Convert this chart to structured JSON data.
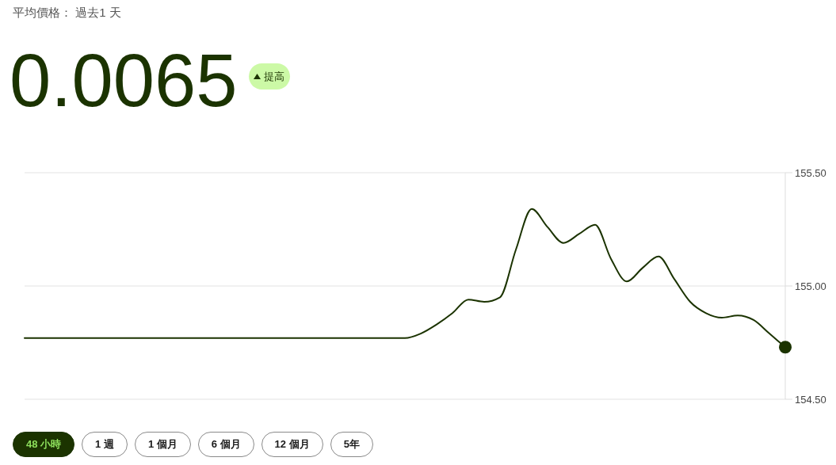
{
  "chart_data": {
    "type": "line",
    "title": "平均價格： 過去1 天",
    "subtitle": "0.0065",
    "annotations": [
      "提高",
      "48 小時",
      "1 週",
      "1 個月",
      "6 個月",
      "12 個月",
      "5年"
    ],
    "categories": [
      null,
      null,
      null,
      null,
      null,
      null,
      null,
      null,
      null,
      null,
      null,
      null,
      null,
      null,
      null,
      null,
      null,
      null,
      null,
      null,
      null,
      null,
      null,
      null,
      null,
      null,
      null,
      null,
      null,
      null,
      null,
      null,
      null,
      null,
      null,
      null,
      null,
      null,
      null,
      null,
      null,
      null,
      null,
      null,
      null,
      null,
      null,
      null,
      null
    ],
    "series": [
      {
        "color": "#1b3300",
        "values": [
          154.77,
          154.77,
          154.77,
          154.77,
          154.77,
          154.77,
          154.77,
          154.77,
          154.77,
          154.77,
          154.77,
          154.77,
          154.77,
          154.77,
          154.77,
          154.77,
          154.77,
          154.77,
          154.77,
          154.77,
          154.77,
          154.77,
          154.77,
          154.77,
          154.77,
          154.79,
          154.83,
          154.88,
          154.94,
          154.93,
          154.95,
          155.16,
          155.34,
          155.26,
          155.19,
          155.23,
          155.27,
          155.12,
          155.02,
          155.08,
          155.13,
          155.03,
          154.93,
          154.88,
          154.86,
          154.87,
          154.85,
          154.79,
          154.73
        ]
      },
      {
        "type": "scatter",
        "color": "#1b3300",
        "marker": "circle",
        "values": [
          null,
          null,
          null,
          null,
          null,
          null,
          null,
          null,
          null,
          null,
          null,
          null,
          null,
          null,
          null,
          null,
          null,
          null,
          null,
          null,
          null,
          null,
          null,
          null,
          null,
          null,
          null,
          null,
          null,
          null,
          null,
          null,
          null,
          null,
          null,
          null,
          null,
          null,
          null,
          null,
          null,
          null,
          null,
          null,
          null,
          null,
          null,
          null,
          154.73
        ]
      }
    ],
    "ylim": [
      154.5,
      155.5
    ],
    "yticks": [
      {
        "value": 154.5,
        "label": "154.50"
      },
      {
        "value": 155,
        "label": "155.00"
      },
      {
        "value": 155.5,
        "label": "155.50"
      }
    ],
    "grid": "y"
  }
}
